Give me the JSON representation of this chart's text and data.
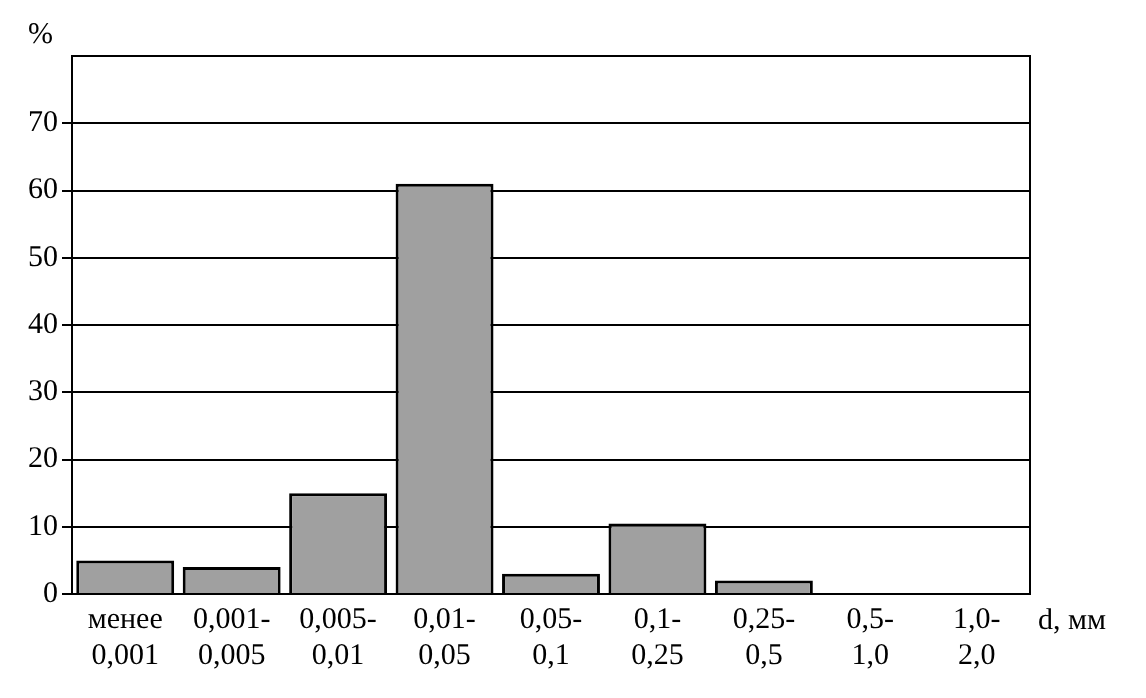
{
  "chart_data": {
    "type": "bar",
    "ylabel": "%",
    "xlabel": "d, мм",
    "categories": [
      "менее\n0,001",
      "0,001-\n0,005",
      "0,005-\n0,01",
      "0,01-\n0,05",
      "0,05-\n0,1",
      "0,1-\n0,25",
      "0,25-\n0,5",
      "0,5-\n1,0",
      "1,0-\n2,0"
    ],
    "values": [
      5,
      4,
      15,
      61,
      3,
      10.5,
      2,
      0,
      0
    ],
    "color": "#a0a0a0",
    "ylim": [
      0,
      80
    ],
    "yticks": [
      0,
      10,
      20,
      30,
      40,
      50,
      60,
      70
    ],
    "grid": "y",
    "legend": false
  }
}
